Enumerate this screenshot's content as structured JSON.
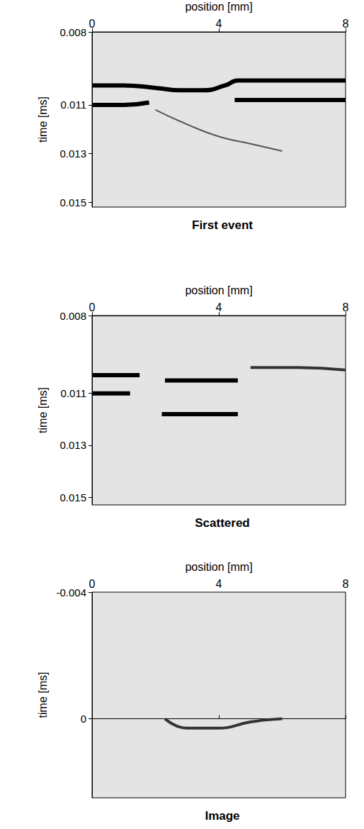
{
  "chart_data": [
    {
      "type": "line",
      "title": "First event",
      "x_label": "position [mm]",
      "y_label": "time [ms]",
      "xlim": [
        0,
        8
      ],
      "xticks": [
        0,
        4,
        8
      ],
      "ylim": [
        0.008,
        0.0152
      ],
      "yticks": [
        0.008,
        0.011,
        0.013,
        0.015
      ],
      "series": [
        {
          "color": "#000000",
          "line_style": "bold",
          "x": [
            0,
            1,
            2,
            2.8,
            3.5,
            4.2,
            4.6,
            5.5,
            6.5,
            8
          ],
          "values": [
            0.0102,
            0.0102,
            0.0103,
            0.0104,
            0.0104,
            0.0102,
            0.01,
            0.01,
            0.01,
            0.01
          ]
        },
        {
          "color": "#000000",
          "line_style": "bold",
          "x": [
            0,
            1,
            1.8
          ],
          "values": [
            0.011,
            0.011,
            0.0109
          ]
        },
        {
          "color": "#000000",
          "line_style": "bold",
          "x": [
            4.5,
            6,
            8
          ],
          "values": [
            0.0108,
            0.0108,
            0.0108
          ]
        },
        {
          "color": "#555555",
          "line_style": "thin",
          "x": [
            2,
            3,
            4,
            5,
            6
          ],
          "values": [
            0.0112,
            0.0118,
            0.0123,
            0.0126,
            0.0129
          ]
        }
      ]
    },
    {
      "type": "line",
      "title": "Scattered",
      "x_label": "position [mm]",
      "y_label": "time [ms]",
      "xlim": [
        0,
        8
      ],
      "xticks": [
        0,
        4,
        8
      ],
      "ylim": [
        0.008,
        0.0153
      ],
      "yticks": [
        0.008,
        0.011,
        0.013,
        0.015
      ],
      "series": [
        {
          "color": "#000000",
          "line_style": "bold",
          "x": [
            0,
            0.8,
            1.5
          ],
          "values": [
            0.0103,
            0.0103,
            0.0103
          ]
        },
        {
          "color": "#000000",
          "line_style": "bold",
          "x": [
            2.3,
            3.5,
            4.6
          ],
          "values": [
            0.0105,
            0.0105,
            0.0105
          ]
        },
        {
          "color": "#333333",
          "line_style": "medium",
          "x": [
            5,
            6.5,
            8
          ],
          "values": [
            0.01,
            0.01,
            0.0101
          ]
        },
        {
          "color": "#000000",
          "line_style": "bold",
          "x": [
            0,
            0.6,
            1.2
          ],
          "values": [
            0.011,
            0.011,
            0.011
          ]
        },
        {
          "color": "#000000",
          "line_style": "bold",
          "x": [
            2.2,
            3.4,
            4.6
          ],
          "values": [
            0.0118,
            0.0118,
            0.0118
          ]
        }
      ]
    },
    {
      "type": "line",
      "title": "Image",
      "x_label": "position [mm]",
      "y_label": "time [ms]",
      "xlim": [
        0,
        8
      ],
      "xticks": [
        0,
        4,
        8
      ],
      "ylim": [
        -0.004,
        0.0025
      ],
      "yticks": [
        -0.004,
        0
      ],
      "series": [
        {
          "color": "#333333",
          "line_style": "medium",
          "x": [
            2.3,
            3,
            4,
            5,
            6
          ],
          "values": [
            0,
            0.0003,
            0.0003,
            0.0001,
            0
          ]
        }
      ]
    }
  ]
}
